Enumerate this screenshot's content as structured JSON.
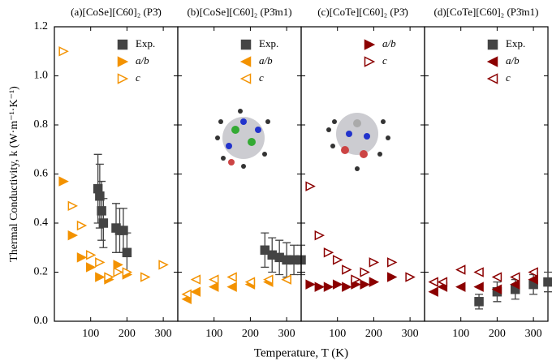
{
  "chart_data": [
    {
      "type": "scatter",
      "title": "(a)[CoSe][C60]₂ (P3̄)",
      "ylabel": "Thermal Conductivity, k (W·m⁻¹·K⁻¹)",
      "xlabel": "Temperature, T (K)",
      "xlim": [
        0,
        340
      ],
      "xticks": [
        100,
        200,
        300
      ],
      "ylim": [
        0,
        1.2
      ],
      "yticks": [
        {
          "value": 0,
          "label": "0.0"
        },
        0.2,
        0.4,
        0.6,
        0.8,
        {
          "value": 1,
          "label": "1.0"
        },
        1.2
      ],
      "series": [
        {
          "name": "Exp.",
          "color": "#444444",
          "marker": "square",
          "filled": true,
          "x": [
            120,
            125,
            130,
            135,
            170,
            180,
            190,
            200
          ],
          "values": [
            0.54,
            0.51,
            0.45,
            0.4,
            0.38,
            0.37,
            0.37,
            0.28
          ],
          "errors": [
            0.14,
            0.13,
            0.12,
            0.1,
            0.1,
            0.09,
            0.09,
            0.08
          ]
        },
        {
          "name": "a/b",
          "color": "#f39200",
          "marker": "triangle-right",
          "filled": true,
          "x": [
            25,
            50,
            75,
            100,
            125,
            150,
            175,
            200
          ],
          "values": [
            0.57,
            0.35,
            0.26,
            0.22,
            0.18,
            0.17,
            0.23,
            0.19
          ]
        },
        {
          "name": "c",
          "color": "#f39200",
          "marker": "triangle-right",
          "filled": false,
          "x": [
            25,
            50,
            75,
            100,
            125,
            150,
            175,
            200,
            250,
            300
          ],
          "values": [
            1.1,
            0.47,
            0.39,
            0.27,
            0.24,
            0.18,
            0.2,
            0.2,
            0.18,
            0.23
          ]
        }
      ]
    },
    {
      "type": "scatter",
      "title": "(b)[CoSe][C60]₂ (P3̄m1)",
      "xlim": [
        0,
        340
      ],
      "xticks": [
        100,
        200,
        300
      ],
      "series": [
        {
          "name": "Exp.",
          "color": "#444444",
          "marker": "square",
          "filled": true,
          "x": [
            240,
            260,
            280,
            300,
            320,
            340
          ],
          "values": [
            0.29,
            0.27,
            0.26,
            0.25,
            0.25,
            0.25
          ],
          "errors": [
            0.07,
            0.07,
            0.07,
            0.07,
            0.06,
            0.06
          ]
        },
        {
          "name": "a/b",
          "color": "#f39200",
          "marker": "triangle-left",
          "filled": true,
          "x": [
            25,
            50,
            100,
            150,
            200,
            250,
            300
          ],
          "values": [
            0.09,
            0.12,
            0.14,
            0.14,
            0.15,
            0.16,
            0.17
          ]
        },
        {
          "name": "c",
          "color": "#f39200",
          "marker": "triangle-left",
          "filled": false,
          "x": [
            25,
            50,
            100,
            150,
            200,
            250,
            300
          ],
          "values": [
            0.11,
            0.17,
            0.17,
            0.18,
            0.16,
            0.17,
            0.17
          ]
        }
      ]
    },
    {
      "type": "scatter",
      "title": "(c)[CoTe][C60]₂ (P3̄)",
      "xlim": [
        0,
        340
      ],
      "xticks": [
        100,
        200,
        300
      ],
      "series": [
        {
          "name": "a/b",
          "color": "#8b0000",
          "marker": "triangle-right",
          "filled": true,
          "x": [
            25,
            50,
            75,
            100,
            125,
            150,
            175,
            200,
            250
          ],
          "values": [
            0.15,
            0.14,
            0.14,
            0.15,
            0.14,
            0.15,
            0.15,
            0.16,
            0.18
          ]
        },
        {
          "name": "c",
          "color": "#8b0000",
          "marker": "triangle-right",
          "filled": false,
          "x": [
            25,
            50,
            75,
            100,
            125,
            150,
            175,
            200,
            250,
            300
          ],
          "values": [
            0.55,
            0.35,
            0.28,
            0.25,
            0.21,
            0.17,
            0.2,
            0.24,
            0.24,
            0.18
          ]
        }
      ]
    },
    {
      "type": "scatter",
      "title": "(d)[CoTe][C60]₂ (P3̄m1)",
      "xlim": [
        0,
        340
      ],
      "xticks": [
        100,
        200,
        300
      ],
      "series": [
        {
          "name": "Exp.",
          "color": "#444444",
          "marker": "square",
          "filled": true,
          "x": [
            150,
            200,
            250,
            300,
            340
          ],
          "values": [
            0.08,
            0.12,
            0.13,
            0.15,
            0.16
          ],
          "errors": [
            0.03,
            0.04,
            0.04,
            0.04,
            0.04
          ]
        },
        {
          "name": "a/b",
          "color": "#8b0000",
          "marker": "triangle-left",
          "filled": true,
          "x": [
            25,
            50,
            100,
            150,
            200,
            250,
            300
          ],
          "values": [
            0.12,
            0.14,
            0.14,
            0.14,
            0.13,
            0.15,
            0.17
          ]
        },
        {
          "name": "c",
          "color": "#8b0000",
          "marker": "triangle-left",
          "filled": false,
          "x": [
            25,
            50,
            100,
            150,
            200,
            250,
            300
          ],
          "values": [
            0.16,
            0.16,
            0.21,
            0.2,
            0.18,
            0.18,
            0.2
          ]
        }
      ]
    }
  ]
}
